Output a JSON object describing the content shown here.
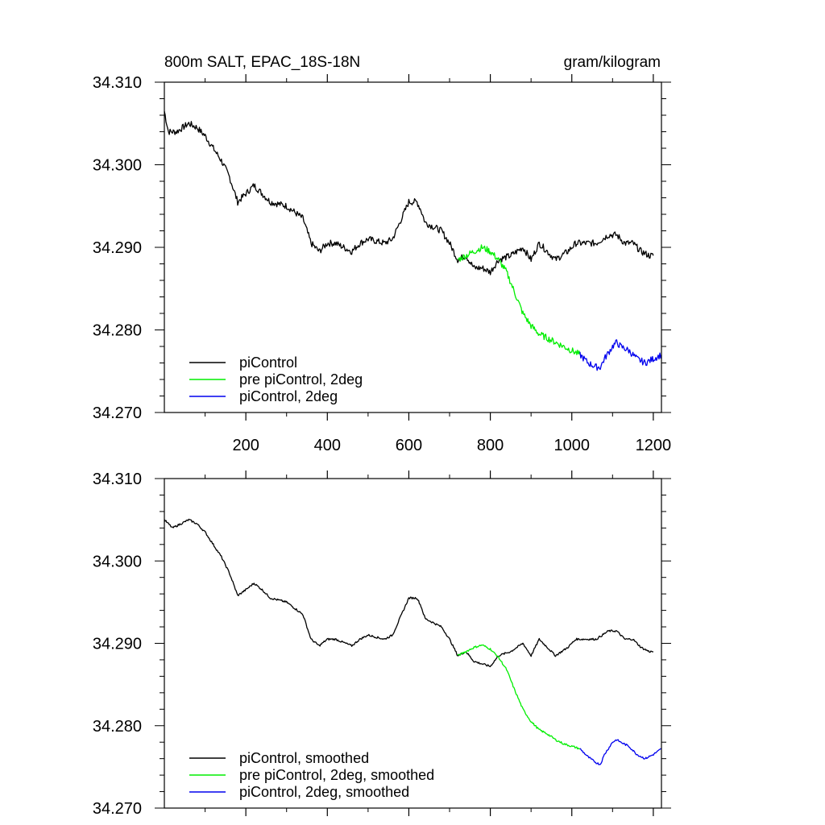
{
  "chart_data": [
    {
      "type": "line",
      "title": "800m SALT, EPAC_18S-18N",
      "units": "gram/kilogram",
      "xlim": [
        0,
        1220
      ],
      "ylim": [
        34.27,
        34.31
      ],
      "xtick_labels": [
        "200",
        "400",
        "600",
        "800",
        "1000",
        "1200"
      ],
      "ytick_labels": [
        "34.310",
        "34.300",
        "34.290",
        "34.280",
        "34.270"
      ],
      "legend_position": "bottom-left",
      "series": [
        {
          "name": "piControl",
          "color": "#000000",
          "x": [
            0,
            10,
            30,
            60,
            80,
            100,
            120,
            140,
            160,
            180,
            200,
            220,
            240,
            260,
            300,
            340,
            360,
            380,
            400,
            420,
            460,
            480,
            500,
            540,
            560,
            600,
            620,
            630,
            640,
            660,
            680,
            700,
            720,
            740,
            760,
            780,
            800,
            820,
            850,
            880,
            900,
            920,
            940,
            960,
            990,
            1010,
            1040,
            1060,
            1090,
            1110,
            1130,
            1150,
            1170,
            1190,
            1200
          ],
          "values": [
            34.3065,
            34.304,
            34.304,
            34.305,
            34.3045,
            34.3035,
            34.302,
            34.3005,
            34.2985,
            34.2955,
            34.2965,
            34.2975,
            34.2965,
            34.2955,
            34.295,
            34.2935,
            34.2905,
            34.2895,
            34.2905,
            34.2905,
            34.2895,
            34.2905,
            34.291,
            34.2905,
            34.291,
            34.2955,
            34.2955,
            34.2945,
            34.293,
            34.2925,
            34.292,
            34.2905,
            34.2885,
            34.289,
            34.2875,
            34.2875,
            34.287,
            34.2885,
            34.289,
            34.29,
            34.2885,
            34.2905,
            34.2895,
            34.2885,
            34.2895,
            34.2905,
            34.2905,
            34.2905,
            34.2915,
            34.2915,
            34.2905,
            34.2905,
            34.2895,
            34.289,
            34.289
          ]
        },
        {
          "name": "pre piControl, 2deg",
          "color": "#00ee00",
          "x": [
            720,
            740,
            760,
            780,
            800,
            820,
            840,
            860,
            880,
            900,
            920,
            940,
            960,
            980,
            1000,
            1020
          ],
          "values": [
            34.2885,
            34.289,
            34.2895,
            34.29,
            34.2895,
            34.2885,
            34.287,
            34.2845,
            34.282,
            34.2805,
            34.2795,
            34.279,
            34.2785,
            34.278,
            34.2775,
            34.277
          ]
        },
        {
          "name": "piControl, 2deg",
          "color": "#0000ee",
          "x": [
            1020,
            1040,
            1060,
            1070,
            1080,
            1100,
            1110,
            1120,
            1140,
            1160,
            1180,
            1200,
            1220
          ],
          "values": [
            34.277,
            34.276,
            34.2755,
            34.2755,
            34.2765,
            34.278,
            34.2785,
            34.278,
            34.2775,
            34.2765,
            34.276,
            34.2765,
            34.277
          ]
        }
      ]
    },
    {
      "type": "line",
      "xlim": [
        0,
        1220
      ],
      "ylim": [
        34.27,
        34.31
      ],
      "ytick_labels": [
        "34.310",
        "34.300",
        "34.290",
        "34.280",
        "34.270"
      ],
      "legend_position": "bottom-left",
      "series": [
        {
          "name": "piControl, smoothed",
          "color": "#000000",
          "x": [
            0,
            20,
            40,
            60,
            80,
            100,
            120,
            140,
            160,
            180,
            200,
            220,
            240,
            260,
            300,
            340,
            360,
            380,
            400,
            420,
            460,
            480,
            500,
            540,
            560,
            600,
            620,
            630,
            640,
            660,
            680,
            700,
            720,
            740,
            760,
            780,
            800,
            820,
            850,
            880,
            900,
            920,
            940,
            960,
            990,
            1010,
            1040,
            1060,
            1090,
            1110,
            1130,
            1150,
            1170,
            1190,
            1200
          ],
          "values": [
            34.305,
            34.304,
            34.3045,
            34.305,
            34.3045,
            34.3035,
            34.302,
            34.3005,
            34.2985,
            34.2958,
            34.2965,
            34.2973,
            34.2965,
            34.2955,
            34.295,
            34.2935,
            34.2905,
            34.2897,
            34.2905,
            34.2905,
            34.2897,
            34.2905,
            34.291,
            34.2905,
            34.291,
            34.2955,
            34.2955,
            34.2945,
            34.293,
            34.2925,
            34.292,
            34.2905,
            34.2885,
            34.289,
            34.2878,
            34.2875,
            34.2872,
            34.2885,
            34.289,
            34.29,
            34.2885,
            34.2905,
            34.2895,
            34.2885,
            34.2895,
            34.2905,
            34.2905,
            34.2905,
            34.2915,
            34.2915,
            34.2905,
            34.2905,
            34.2895,
            34.289,
            34.289
          ]
        },
        {
          "name": "pre piControl, 2deg, smoothed",
          "color": "#00ee00",
          "x": [
            720,
            740,
            760,
            780,
            800,
            820,
            840,
            860,
            880,
            900,
            920,
            940,
            960,
            980,
            1000,
            1020
          ],
          "values": [
            34.2885,
            34.289,
            34.2895,
            34.2898,
            34.2893,
            34.2883,
            34.2868,
            34.2843,
            34.282,
            34.2805,
            34.2795,
            34.279,
            34.2783,
            34.2778,
            34.2775,
            34.2772
          ]
        },
        {
          "name": "piControl, 2deg, smoothed",
          "color": "#0000ee",
          "x": [
            1020,
            1040,
            1060,
            1070,
            1080,
            1100,
            1110,
            1120,
            1140,
            1160,
            1180,
            1200,
            1220
          ],
          "values": [
            34.2772,
            34.2762,
            34.2755,
            34.2753,
            34.2765,
            34.278,
            34.2783,
            34.278,
            34.2775,
            34.2765,
            34.276,
            34.2765,
            34.2772
          ]
        }
      ]
    }
  ]
}
